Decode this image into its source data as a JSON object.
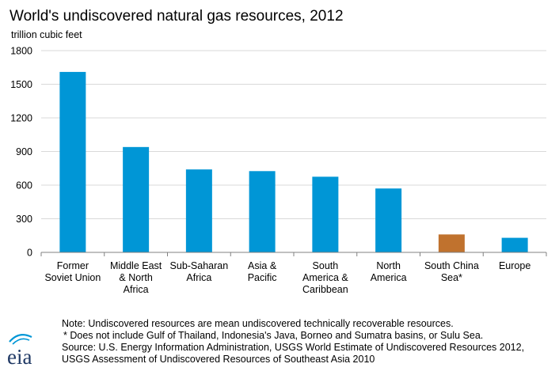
{
  "title": "World's undiscovered natural gas resources, 2012",
  "unit_label": "trillion cubic feet",
  "colors": {
    "primary_bar": "#0096D6",
    "highlight_bar": "#C0722E",
    "grid": "#D9D9D9",
    "axis": "#808080",
    "logo_text": "#1F3864",
    "logo_arc": "#0096D6"
  },
  "chart_data": {
    "type": "bar",
    "title": "World's undiscovered natural gas resources, 2012",
    "ylabel": "trillion cubic feet",
    "xlabel": "",
    "ylim": [
      0,
      1800
    ],
    "yticks": [
      0,
      300,
      600,
      900,
      1200,
      1500,
      1800
    ],
    "grid": true,
    "categories": [
      [
        "Former",
        "Soviet Union"
      ],
      [
        "Middle East",
        "& North",
        "Africa"
      ],
      [
        "Sub-Saharan",
        "Africa"
      ],
      [
        "Asia &",
        "Pacific"
      ],
      [
        "South",
        "America &",
        "Caribbean"
      ],
      [
        "North",
        "America"
      ],
      [
        "South China",
        "Sea*"
      ],
      [
        "Europe"
      ]
    ],
    "values": [
      1610,
      940,
      740,
      725,
      675,
      570,
      160,
      130
    ],
    "highlight_index": 6
  },
  "notes": {
    "note": "Note: Undiscovered resources are mean undiscovered technically recoverable resources.",
    "footnote": "* Does not include Gulf of Thailand, Indonesia's Java, Borneo and Sumatra basins, or Sulu Sea.",
    "source_line1": "Source: U.S. Energy Information Administration, USGS World Estimate of Undiscovered Resources 2012,",
    "source_line2": "USGS Assessment of Undiscovered Resources of Southeast Asia 2010"
  },
  "logo": {
    "text": "eia"
  }
}
